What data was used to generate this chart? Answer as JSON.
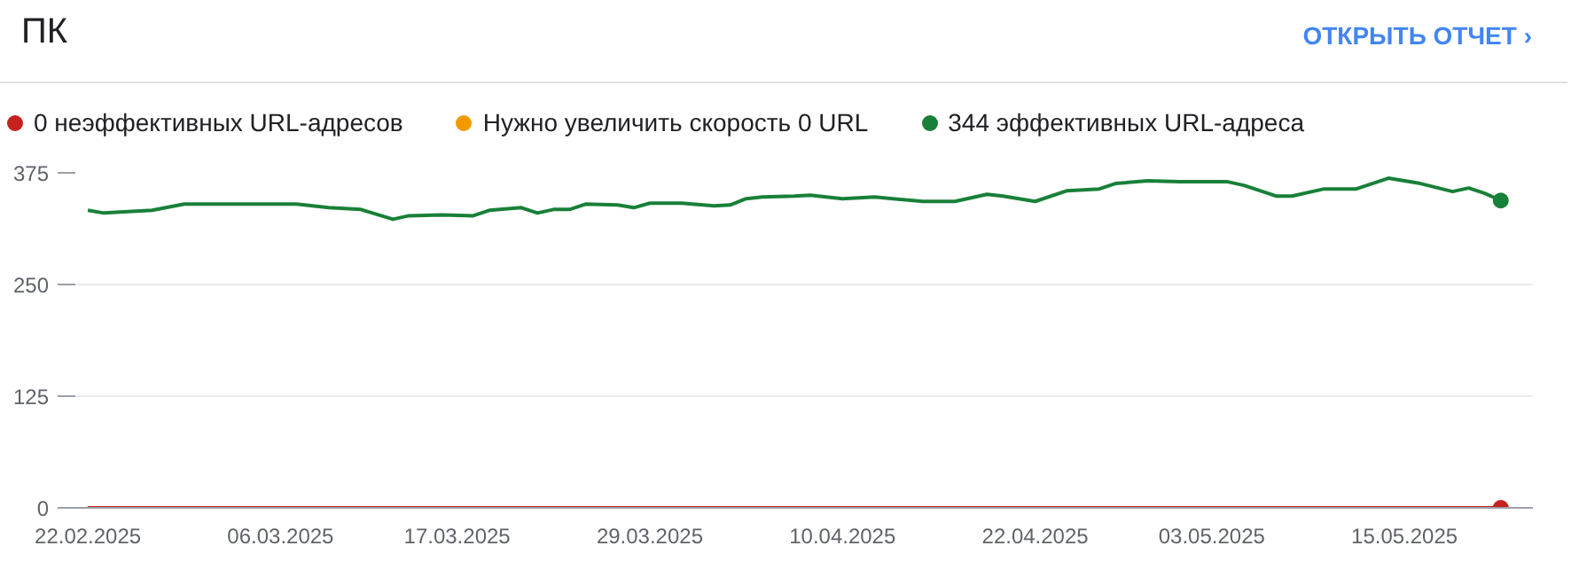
{
  "chart_data": {
    "type": "line",
    "title": "ПК",
    "annotations": [
      "ОТКРЫТЬ ОТЧЕТ ›"
    ],
    "xlim": [
      "2025-02-21",
      "2025-05-23"
    ],
    "xticks": [
      {
        "value": "2025-02-22",
        "label": "22.02.2025"
      },
      {
        "value": "2025-03-06",
        "label": "06.03.2025"
      },
      {
        "value": "2025-03-17",
        "label": "17.03.2025"
      },
      {
        "value": "2025-03-29",
        "label": "29.03.2025"
      },
      {
        "value": "2025-04-10",
        "label": "10.04.2025"
      },
      {
        "value": "2025-04-22",
        "label": "22.04.2025"
      },
      {
        "value": "2025-05-03",
        "label": "03.05.2025"
      },
      {
        "value": "2025-05-15",
        "label": "15.05.2025"
      }
    ],
    "ylim": [
      0,
      375
    ],
    "yticks": [
      0,
      125,
      250,
      375
    ],
    "grid": "y",
    "legend": "top",
    "line_style": "solid",
    "series": [
      {
        "name": "0 неэффективных URL-адресов",
        "color": "#c5221f",
        "x": [
          "2025-02-22",
          "2025-05-21"
        ],
        "values": [
          0,
          0
        ]
      },
      {
        "name": "Нужно увеличить скорость 0 URL",
        "color": "#f29900"
      },
      {
        "name": "344 эффективных URL-адреса",
        "color": "#188038",
        "x": [
          "2025-02-22",
          "2025-02-23",
          "2025-02-26",
          "2025-02-28",
          "2025-03-03",
          "2025-03-07",
          "2025-03-09",
          "2025-03-11",
          "2025-03-13",
          "2025-03-14",
          "2025-03-16",
          "2025-03-18",
          "2025-03-19",
          "2025-03-21",
          "2025-03-22",
          "2025-03-23",
          "2025-03-24",
          "2025-03-25",
          "2025-03-27",
          "2025-03-28",
          "2025-03-29",
          "2025-03-31",
          "2025-04-02",
          "2025-04-03",
          "2025-04-04",
          "2025-04-05",
          "2025-04-07",
          "2025-04-08",
          "2025-04-10",
          "2025-04-12",
          "2025-04-15",
          "2025-04-17",
          "2025-04-19",
          "2025-04-20",
          "2025-04-22",
          "2025-04-24",
          "2025-04-26",
          "2025-04-27",
          "2025-04-29",
          "2025-05-01",
          "2025-05-04",
          "2025-05-05",
          "2025-05-07",
          "2025-05-08",
          "2025-05-10",
          "2025-05-12",
          "2025-05-14",
          "2025-05-16",
          "2025-05-18",
          "2025-05-19",
          "2025-05-20",
          "2025-05-21"
        ],
        "values": [
          333,
          330,
          333,
          340,
          340,
          340,
          336,
          334,
          323,
          327,
          328,
          327,
          333,
          336,
          330,
          334,
          334,
          340,
          339,
          336,
          341,
          341,
          338,
          339,
          346,
          348,
          349,
          350,
          346,
          348,
          343,
          343,
          351,
          349,
          343,
          355,
          357,
          363,
          366,
          365,
          365,
          361,
          349,
          349,
          357,
          357,
          369,
          363,
          354,
          358,
          352,
          344
        ]
      }
    ]
  }
}
